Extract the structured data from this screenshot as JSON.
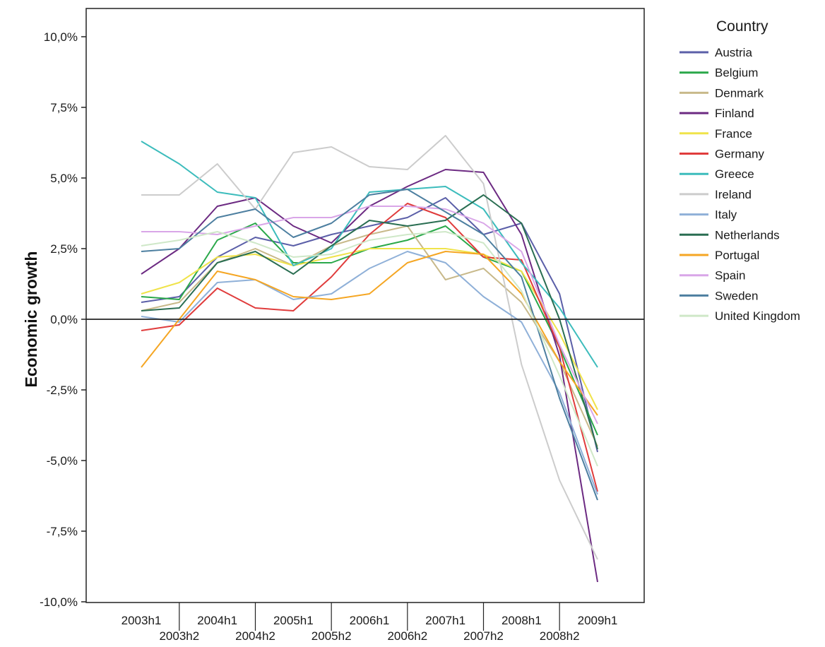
{
  "chart_data": {
    "type": "line",
    "ylabel": "Economic growth",
    "xlabel": "",
    "ylim": [
      -10,
      11
    ],
    "yticks": [
      10,
      7.5,
      5,
      2.5,
      0,
      -2.5,
      -5,
      -7.5,
      -10
    ],
    "ytick_labels": [
      "10,0%",
      "7,5%",
      "5,0%",
      "2,5%",
      "0,0%",
      "-2,5%",
      "-5,0%",
      "-7,5%",
      "-10,0%"
    ],
    "x": [
      "2003h1",
      "2003h2",
      "2004h1",
      "2004h2",
      "2005h1",
      "2005h2",
      "2006h1",
      "2006h2",
      "2007h1",
      "2007h2",
      "2008h1",
      "2008h2",
      "2009h1"
    ],
    "legend": {
      "title": "Country",
      "placement": "right"
    },
    "reference_line": 0,
    "series": [
      {
        "name": "Austria",
        "color": "#5b5fa8",
        "values": [
          0.6,
          0.8,
          2.2,
          2.9,
          2.6,
          3.0,
          3.3,
          3.6,
          4.3,
          3.0,
          3.4,
          0.9,
          -4.7
        ]
      },
      {
        "name": "Belgium",
        "color": "#2aa84a",
        "values": [
          0.8,
          0.7,
          2.8,
          3.4,
          2.0,
          2.0,
          2.5,
          2.8,
          3.3,
          2.2,
          1.7,
          -1.0,
          -4.1
        ]
      },
      {
        "name": "Denmark",
        "color": "#c8b98a",
        "values": [
          0.3,
          0.6,
          2.0,
          2.5,
          1.9,
          2.6,
          3.0,
          3.3,
          1.4,
          1.8,
          0.6,
          -1.5,
          -4.5
        ]
      },
      {
        "name": "Finland",
        "color": "#6c2a82",
        "values": [
          1.6,
          2.5,
          4.0,
          4.3,
          3.3,
          2.7,
          4.0,
          4.7,
          5.3,
          5.2,
          3.0,
          -1.3,
          -9.3
        ]
      },
      {
        "name": "France",
        "color": "#f0e34a",
        "values": [
          0.9,
          1.3,
          2.2,
          2.3,
          1.9,
          2.2,
          2.5,
          2.5,
          2.5,
          2.3,
          1.7,
          -0.5,
          -3.2
        ]
      },
      {
        "name": "Germany",
        "color": "#e03c3c",
        "values": [
          -0.4,
          -0.2,
          1.1,
          0.4,
          0.3,
          1.5,
          3.0,
          4.1,
          3.6,
          2.2,
          2.1,
          -1.0,
          -6.1
        ]
      },
      {
        "name": "Greece",
        "color": "#3cbcbc",
        "values": [
          6.3,
          5.5,
          4.5,
          4.3,
          1.9,
          2.5,
          4.5,
          4.6,
          4.7,
          3.9,
          2.0,
          0.4,
          -1.7
        ]
      },
      {
        "name": "Ireland",
        "color": "#cccccc",
        "values": [
          4.4,
          4.4,
          5.5,
          3.9,
          5.9,
          6.1,
          5.4,
          5.3,
          6.5,
          4.8,
          -1.6,
          -5.7,
          -8.5
        ]
      },
      {
        "name": "Italy",
        "color": "#8fb0d8",
        "values": [
          0.1,
          -0.1,
          1.3,
          1.4,
          0.7,
          0.9,
          1.8,
          2.4,
          2.0,
          0.8,
          -0.1,
          -2.6,
          -6.2
        ]
      },
      {
        "name": "Netherlands",
        "color": "#2a6e52",
        "values": [
          0.3,
          0.4,
          2.0,
          2.4,
          1.6,
          2.6,
          3.5,
          3.3,
          3.5,
          4.4,
          3.4,
          0.0,
          -4.6
        ]
      },
      {
        "name": "Portugal",
        "color": "#f5a623",
        "values": [
          -1.7,
          0.0,
          1.7,
          1.4,
          0.8,
          0.7,
          0.9,
          2.0,
          2.4,
          2.3,
          0.9,
          -1.5,
          -3.4
        ]
      },
      {
        "name": "Spain",
        "color": "#d9a6e8",
        "values": [
          3.1,
          3.1,
          3.0,
          3.3,
          3.6,
          3.6,
          4.0,
          4.0,
          3.9,
          3.4,
          2.4,
          -0.9,
          -3.7
        ]
      },
      {
        "name": "Sweden",
        "color": "#4d7fa0",
        "values": [
          2.4,
          2.5,
          3.6,
          3.9,
          2.9,
          3.4,
          4.4,
          4.6,
          3.8,
          3.0,
          1.5,
          -2.8,
          -6.4
        ]
      },
      {
        "name": "United Kingdom",
        "color": "#cfe8c8",
        "values": [
          2.6,
          2.8,
          3.1,
          2.7,
          2.2,
          2.3,
          2.8,
          3.0,
          3.1,
          2.7,
          1.0,
          -2.0,
          -5.2
        ]
      }
    ]
  }
}
